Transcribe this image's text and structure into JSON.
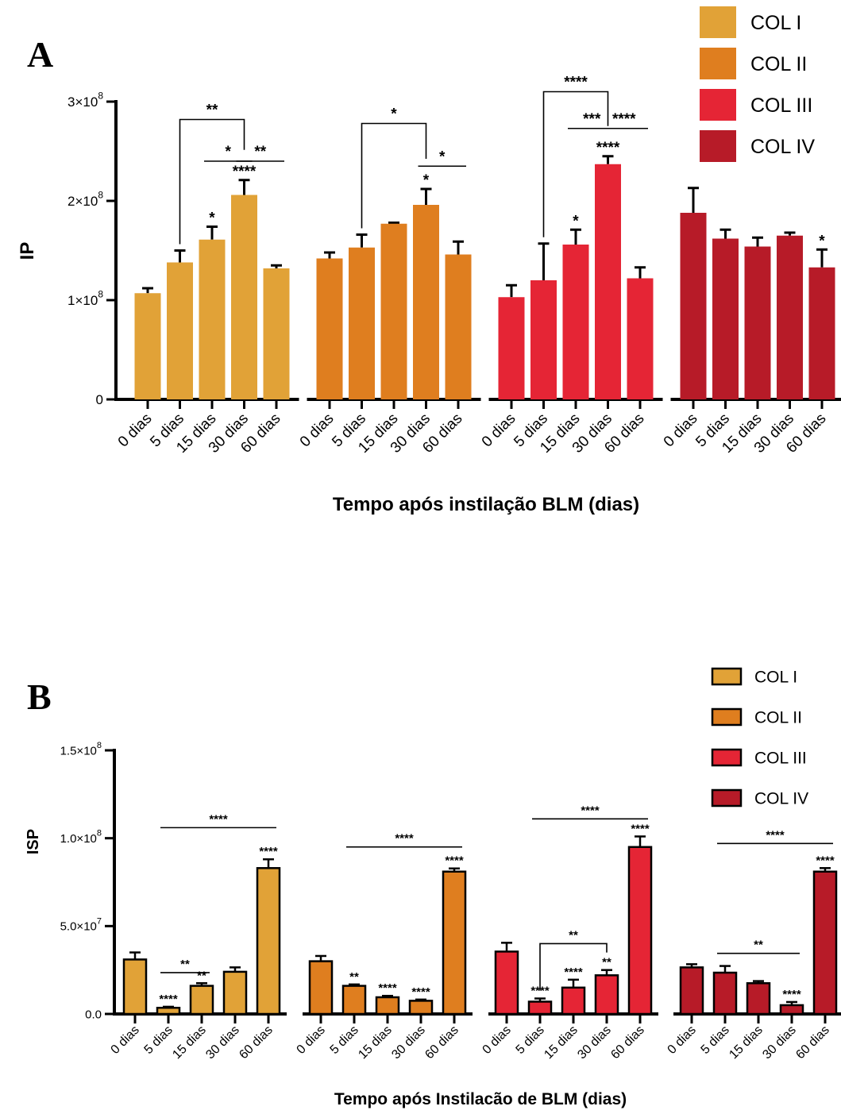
{
  "colors": {
    "COL I": "#e1a237",
    "COL II": "#df7e1f",
    "COL III": "#e52535",
    "COL IV": "#b71b28"
  },
  "chart_data": [
    {
      "type": "bar",
      "panel": "A",
      "ylabel": "IP",
      "xlabel": "Tempo após instilação BLM (dias)",
      "ylim": [
        0,
        300000000
      ],
      "yticks": [
        {
          "value": 0,
          "label": "0"
        },
        {
          "value": 100000000,
          "label": "1×10",
          "exp": "8"
        },
        {
          "value": 200000000,
          "label": "2×10",
          "exp": "8"
        },
        {
          "value": 300000000,
          "label": "3×10",
          "exp": "8"
        }
      ],
      "categories": [
        "0 dias",
        "5 dias",
        "15 dias",
        "30 dias",
        "60 dias"
      ],
      "legend": [
        "COL I",
        "COL II",
        "COL III",
        "COL IV"
      ],
      "legend_position": "top-right",
      "legend_style": "filled",
      "series": [
        {
          "name": "COL I",
          "values": [
            107000000,
            138000000,
            161000000,
            206000000,
            132000000
          ],
          "errors": [
            5000000,
            12000000,
            13000000,
            15000000,
            3000000
          ],
          "stars": [
            "",
            "",
            "*",
            "****",
            ""
          ]
        },
        {
          "name": "COL II",
          "values": [
            142000000,
            153000000,
            177000000,
            196000000,
            146000000
          ],
          "errors": [
            6000000,
            13000000,
            1000000,
            16000000,
            13000000
          ],
          "stars": [
            "",
            "",
            "",
            "*",
            ""
          ]
        },
        {
          "name": "COL III",
          "values": [
            103000000,
            120000000,
            156000000,
            237000000,
            122000000
          ],
          "errors": [
            12000000,
            37000000,
            15000000,
            8000000,
            11000000
          ],
          "stars": [
            "",
            "",
            "*",
            "****",
            ""
          ]
        },
        {
          "name": "COL IV",
          "values": [
            188000000,
            162000000,
            154000000,
            165000000,
            133000000
          ],
          "errors": [
            25000000,
            9000000,
            9000000,
            3000000,
            18000000
          ],
          "stars": [
            "",
            "",
            "",
            "",
            "*"
          ]
        }
      ],
      "brackets": [
        {
          "series": 0,
          "from": 1,
          "to": 3,
          "label": "**",
          "kind": "bracket",
          "y": 282000000
        },
        {
          "series": 0,
          "from": 2,
          "to": 3,
          "label": "*",
          "kind": "line",
          "y": 240000000
        },
        {
          "series": 0,
          "from": 3,
          "to": 4,
          "label": "**",
          "kind": "line",
          "y": 240000000
        },
        {
          "series": 1,
          "from": 1,
          "to": 3,
          "label": "*",
          "kind": "bracket",
          "y": 278000000
        },
        {
          "series": 1,
          "from": 3,
          "to": 4,
          "label": "*",
          "kind": "line",
          "y": 235000000
        },
        {
          "series": 2,
          "from": 1,
          "to": 3,
          "label": "****",
          "kind": "bracket",
          "y": 310000000
        },
        {
          "series": 2,
          "from": 2,
          "to": 3,
          "label": "***",
          "kind": "line",
          "y": 273000000
        },
        {
          "series": 2,
          "from": 3,
          "to": 4,
          "label": "****",
          "kind": "line",
          "y": 273000000
        }
      ]
    },
    {
      "type": "bar",
      "panel": "B",
      "ylabel": "ISP",
      "xlabel": "Tempo após Instilacão de BLM (dias)",
      "ylim": [
        0,
        150000000
      ],
      "yticks": [
        {
          "value": 0,
          "label": "0.0"
        },
        {
          "value": 50000000,
          "label": "5.0×10",
          "exp": "7"
        },
        {
          "value": 100000000,
          "label": "1.0×10",
          "exp": "8"
        },
        {
          "value": 150000000,
          "label": "1.5×10",
          "exp": "8"
        }
      ],
      "categories": [
        "0 dias",
        "5 dias",
        "15 dias",
        "30 dias",
        "60 dias"
      ],
      "legend": [
        "COL I",
        "COL II",
        "COL III",
        "COL IV"
      ],
      "legend_position": "top-right",
      "legend_style": "outlined",
      "series": [
        {
          "name": "COL I",
          "values": [
            31000000,
            3500000,
            16000000,
            24000000,
            83000000
          ],
          "errors": [
            4000000,
            600000,
            1500000,
            2500000,
            5000000
          ],
          "stars": [
            "",
            "****",
            "**",
            "",
            "****"
          ]
        },
        {
          "name": "COL II",
          "values": [
            30000000,
            16000000,
            9500000,
            7500000,
            81000000
          ],
          "errors": [
            3000000,
            800000,
            800000,
            700000,
            1800000
          ],
          "stars": [
            "",
            "**",
            "****",
            "****",
            "****"
          ]
        },
        {
          "name": "COL III",
          "values": [
            35500000,
            7000000,
            15000000,
            22000000,
            95000000
          ],
          "errors": [
            5000000,
            1800000,
            4500000,
            3000000,
            6000000
          ],
          "stars": [
            "",
            "****",
            "****",
            "**",
            "****"
          ]
        },
        {
          "name": "COL IV",
          "values": [
            26500000,
            23500000,
            17500000,
            5000000,
            81000000
          ],
          "errors": [
            1800000,
            3800000,
            1200000,
            1800000,
            2000000
          ],
          "stars": [
            "",
            "",
            "",
            "****",
            "****"
          ]
        }
      ],
      "brackets": [
        {
          "series": 0,
          "from": 1,
          "to": 4,
          "label": "****",
          "kind": "line",
          "y": 106000000
        },
        {
          "series": 0,
          "from": 1,
          "to": 2,
          "label": "**",
          "kind": "line",
          "y": 23500000
        },
        {
          "series": 1,
          "from": 1,
          "to": 4,
          "label": "****",
          "kind": "line",
          "y": 95000000
        },
        {
          "series": 2,
          "from": 1,
          "to": 4,
          "label": "****",
          "kind": "line",
          "y": 111000000
        },
        {
          "series": 2,
          "from": 1,
          "to": 3,
          "label": "**",
          "kind": "bracket",
          "y": 40000000
        },
        {
          "series": 3,
          "from": 1,
          "to": 4,
          "label": "****",
          "kind": "line",
          "y": 97000000
        },
        {
          "series": 3,
          "from": 1,
          "to": 3,
          "label": "**",
          "kind": "line",
          "y": 34500000
        }
      ]
    }
  ]
}
